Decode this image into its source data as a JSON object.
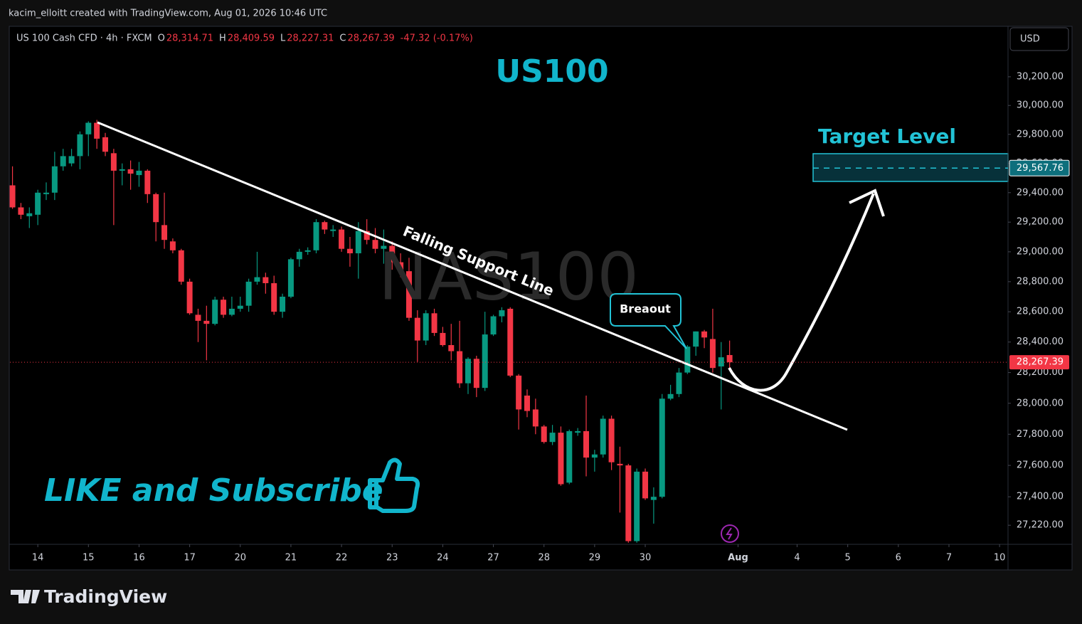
{
  "header": {
    "credit": "kacim_elloitt created with TradingView.com, Aug 01, 2026 10:46 UTC",
    "symbol": "US 100 Cash CFD · 4h · FXCM",
    "ohlc": [
      {
        "key": "O",
        "value": "28,314.71"
      },
      {
        "key": "H",
        "value": "28,409.59"
      },
      {
        "key": "L",
        "value": "28,227.31"
      },
      {
        "key": "C",
        "value": "28,267.39"
      }
    ],
    "change": "-47.32 (-0.17%)",
    "currency": "USD"
  },
  "annotations": {
    "title": "US100",
    "watermark": "NAS100",
    "support_label": "Falling Support Line",
    "breakout_label": "Breaout",
    "target_title": "Target Level",
    "cta": "LIKE and Subscribe",
    "brand": "TradingView"
  },
  "chart_data": {
    "type": "candlestick",
    "up_color": "#089981",
    "down_color": "#f23645",
    "log_scale": true,
    "x": [
      0,
      1,
      2,
      3,
      4,
      5,
      6,
      7,
      8,
      9,
      10,
      11,
      12,
      13,
      14,
      15,
      16,
      17,
      18,
      19,
      20,
      21,
      22,
      23,
      24,
      25,
      26,
      27,
      28,
      29,
      30,
      31,
      32,
      33,
      34,
      35,
      36,
      37,
      38,
      39,
      40,
      41,
      42,
      43,
      44,
      45,
      46,
      47,
      48,
      49,
      50,
      51,
      52,
      53,
      54,
      55,
      56,
      57,
      58,
      59,
      60,
      61,
      62,
      63,
      64,
      65,
      66,
      67,
      68,
      69,
      70,
      71,
      72,
      73,
      74,
      75,
      76,
      77,
      78,
      79,
      80,
      81,
      82,
      83,
      84,
      85
    ],
    "open": [
      29450,
      29300,
      29240,
      29250,
      29390,
      29400,
      29580,
      29600,
      29650,
      29800,
      29880,
      29780,
      29670,
      29550,
      29560,
      29520,
      29550,
      29390,
      29180,
      29070,
      29010,
      28800,
      28580,
      28540,
      28520,
      28680,
      28580,
      28620,
      28640,
      28800,
      28830,
      28790,
      28600,
      28700,
      28950,
      29000,
      29010,
      29200,
      29140,
      29150,
      29020,
      28990,
      29140,
      29080,
      29020,
      29040,
      28930,
      28870,
      28560,
      28410,
      28590,
      28460,
      28380,
      28340,
      28130,
      28290,
      28100,
      28450,
      28570,
      28620,
      28180,
      28050,
      27960,
      27850,
      27750,
      27810,
      27490,
      27810,
      27820,
      27650,
      27670,
      27900,
      27610,
      27600,
      27120,
      27560,
      27380,
      27400,
      28030,
      28060,
      28200,
      28370,
      28470,
      28420,
      28240,
      28314.71
    ],
    "high": [
      29580,
      29330,
      29300,
      29420,
      29470,
      29680,
      29700,
      29700,
      29820,
      29890,
      29900,
      29810,
      29700,
      29600,
      29620,
      29610,
      29560,
      29400,
      29400,
      29090,
      29020,
      28820,
      28620,
      28640,
      28700,
      28700,
      28700,
      28700,
      28820,
      29000,
      28860,
      28840,
      28720,
      28960,
      29020,
      29030,
      29220,
      29210,
      29180,
      29170,
      29100,
      29200,
      29220,
      29160,
      29150,
      29070,
      28990,
      28960,
      28610,
      28610,
      28620,
      28500,
      28520,
      28540,
      28300,
      28310,
      28600,
      28580,
      28630,
      28630,
      28190,
      28090,
      28030,
      27860,
      27860,
      27850,
      27830,
      27840,
      28050,
      27700,
      27920,
      27920,
      27720,
      27610,
      27580,
      27580,
      27460,
      28060,
      28120,
      28230,
      28380,
      28470,
      28480,
      28620,
      28400,
      28409.59
    ],
    "low": [
      29290,
      29220,
      29160,
      29180,
      29350,
      29350,
      29550,
      29580,
      29560,
      29650,
      29700,
      29650,
      29180,
      29450,
      29420,
      29440,
      29330,
      29070,
      29020,
      28990,
      28780,
      28580,
      28400,
      28280,
      28510,
      28560,
      28570,
      28600,
      28600,
      28780,
      28720,
      28580,
      28560,
      28690,
      28900,
      28980,
      28990,
      29120,
      29100,
      29000,
      28900,
      28820,
      29050,
      28990,
      28920,
      28880,
      28830,
      28540,
      28270,
      28380,
      28440,
      28370,
      28280,
      28100,
      28060,
      28040,
      28080,
      28440,
      28530,
      28170,
      27830,
      27910,
      27800,
      27740,
      27730,
      27470,
      27480,
      27790,
      27530,
      27560,
      27650,
      27570,
      27300,
      27110,
      27110,
      27380,
      27230,
      27390,
      28020,
      28040,
      28190,
      28310,
      28360,
      28200,
      27960,
      28227.31
    ],
    "close": [
      29300,
      29250,
      29260,
      29400,
      29400,
      29580,
      29650,
      29650,
      29800,
      29880,
      29770,
      29680,
      29550,
      29560,
      29530,
      29550,
      29390,
      29200,
      29080,
      29010,
      28800,
      28590,
      28540,
      28520,
      28680,
      28580,
      28620,
      28640,
      28800,
      28830,
      28790,
      28600,
      28700,
      28950,
      29000,
      29010,
      29200,
      29150,
      29150,
      29020,
      28990,
      29140,
      29080,
      29020,
      29040,
      28930,
      28870,
      28560,
      28410,
      28590,
      28460,
      28380,
      28340,
      28130,
      28290,
      28100,
      28450,
      28570,
      28610,
      28180,
      27960,
      27950,
      27850,
      27750,
      27810,
      27480,
      27820,
      27820,
      27650,
      27670,
      27900,
      27620,
      27600,
      27120,
      27560,
      27390,
      27400,
      28030,
      28060,
      28200,
      28370,
      28470,
      28430,
      28230,
      28300,
      28267.39
    ],
    "xlim": [
      -0.3,
      118
    ],
    "xticks": [
      {
        "value": 3,
        "label": "14"
      },
      {
        "value": 9,
        "label": "15"
      },
      {
        "value": 15,
        "label": "16"
      },
      {
        "value": 21,
        "label": "17"
      },
      {
        "value": 27,
        "label": "20"
      },
      {
        "value": 33,
        "label": "21"
      },
      {
        "value": 39,
        "label": "22"
      },
      {
        "value": 45,
        "label": "23"
      },
      {
        "value": 51,
        "label": "24"
      },
      {
        "value": 57,
        "label": "27"
      },
      {
        "value": 63,
        "label": "28"
      },
      {
        "value": 69,
        "label": "29"
      },
      {
        "value": 75,
        "label": "30"
      },
      {
        "value": 86,
        "label": "Aug"
      },
      {
        "value": 93,
        "label": "4"
      },
      {
        "value": 99,
        "label": "5"
      },
      {
        "value": 105,
        "label": "6"
      },
      {
        "value": 111,
        "label": "7"
      },
      {
        "value": 117,
        "label": "10"
      }
    ],
    "ylim": [
      27100,
      30550
    ],
    "yticks": [
      {
        "value": 27220,
        "label": "27,220.00"
      },
      {
        "value": 27400,
        "label": "27,400.00"
      },
      {
        "value": 27600,
        "label": "27,600.00"
      },
      {
        "value": 27800,
        "label": "27,800.00"
      },
      {
        "value": 28000,
        "label": "28,000.00"
      },
      {
        "value": 28200,
        "label": "28,200.00"
      },
      {
        "value": 28400,
        "label": "28,400.00"
      },
      {
        "value": 28600,
        "label": "28,600.00"
      },
      {
        "value": 28800,
        "label": "28,800.00"
      },
      {
        "value": 29000,
        "label": "29,000.00"
      },
      {
        "value": 29200,
        "label": "29,200.00"
      },
      {
        "value": 29400,
        "label": "29,400.00"
      },
      {
        "value": 29600,
        "label": "29,600.00"
      },
      {
        "value": 29800,
        "label": "29,800.00"
      },
      {
        "value": 30000,
        "label": "30,000.00"
      },
      {
        "value": 30200,
        "label": "30,200.00"
      }
    ],
    "last_price": {
      "value": 28267.39,
      "label": "28,267.39"
    },
    "target": {
      "value": 29567.76,
      "label": "29,567.76"
    }
  }
}
